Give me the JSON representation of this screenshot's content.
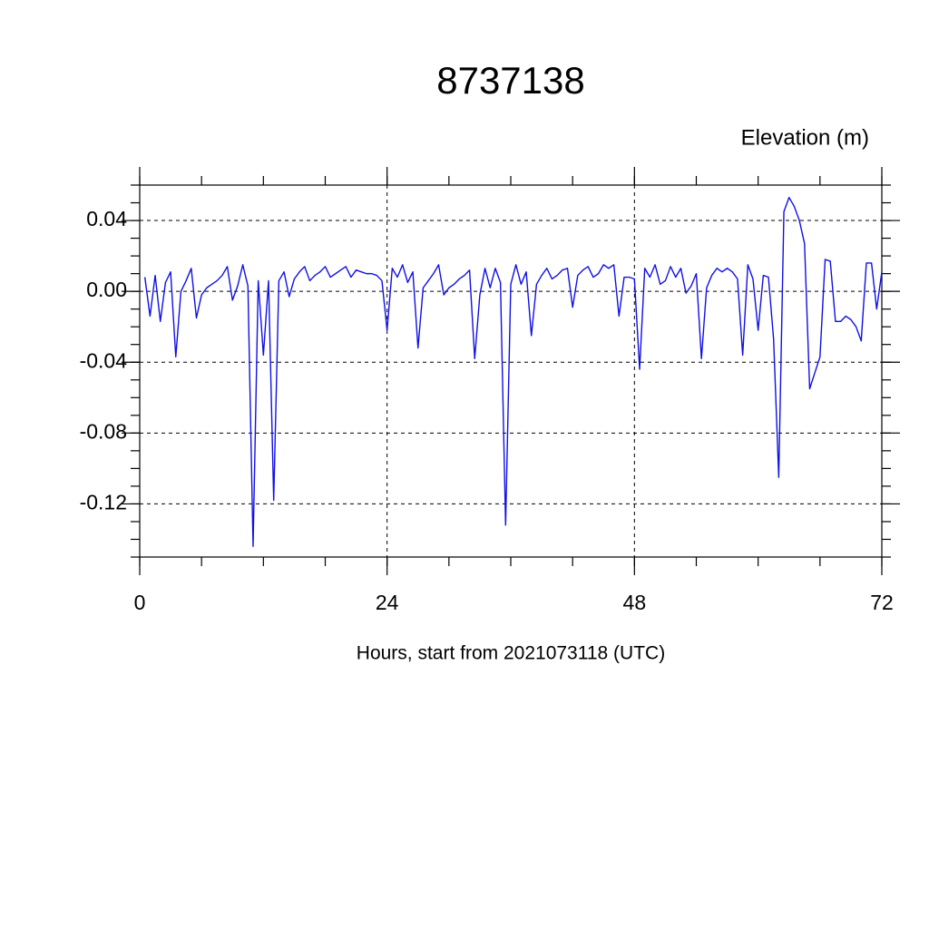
{
  "chart_data": {
    "type": "line",
    "title": "8737138",
    "ylabel": "Elevation (m)",
    "xlabel": "Hours, start from 2021073118 (UTC)",
    "color": "#1010e6",
    "x": [
      0.5,
      1,
      1.5,
      2,
      2.5,
      3,
      3.5,
      4,
      4.5,
      5,
      5.5,
      6,
      6.5,
      7,
      7.5,
      8,
      8.5,
      9,
      9.5,
      10,
      10.5,
      11,
      11.5,
      12,
      12.5,
      13,
      13.5,
      14,
      14.5,
      15,
      15.5,
      16,
      16.5,
      17,
      17.5,
      18,
      18.5,
      19,
      19.5,
      20,
      20.5,
      21,
      21.5,
      22,
      22.5,
      23,
      23.5,
      24,
      24.5,
      25,
      25.5,
      26,
      26.5,
      27,
      27.5,
      28,
      28.5,
      29,
      29.5,
      30,
      30.5,
      31,
      31.5,
      32,
      32.5,
      33,
      33.5,
      34,
      34.5,
      35,
      35.5,
      36,
      36.5,
      37,
      37.5,
      38,
      38.5,
      39,
      39.5,
      40,
      40.5,
      41,
      41.5,
      42,
      42.5,
      43,
      43.5,
      44,
      44.5,
      45,
      45.5,
      46,
      46.5,
      47,
      47.5,
      48,
      48.5,
      49,
      49.5,
      50,
      50.5,
      51,
      51.5,
      52,
      52.5,
      53,
      53.5,
      54,
      54.5,
      55,
      55.5,
      56,
      56.5,
      57,
      57.5,
      58,
      58.5,
      59,
      59.5,
      60,
      60.5,
      61,
      61.5,
      62,
      62.5,
      63,
      63.5,
      64,
      64.5,
      65,
      65.5,
      66,
      66.5,
      67,
      67.5,
      68,
      68.5,
      69,
      69.5,
      70,
      70.5,
      71,
      71.5,
      72
    ],
    "values": [
      0.008,
      -0.014,
      0.009,
      -0.017,
      0.005,
      0.011,
      -0.037,
      0.0,
      0.006,
      0.013,
      -0.015,
      -0.002,
      0.002,
      0.004,
      0.006,
      0.009,
      0.014,
      -0.005,
      0.003,
      0.015,
      0.003,
      -0.144,
      0.006,
      -0.036,
      0.006,
      -0.118,
      0.006,
      0.011,
      -0.003,
      0.007,
      0.011,
      0.014,
      0.006,
      0.009,
      0.011,
      0.014,
      0.008,
      0.01,
      0.012,
      0.014,
      0.008,
      0.012,
      0.011,
      0.01,
      0.01,
      0.009,
      0.006,
      -0.022,
      0.013,
      0.008,
      0.015,
      0.005,
      0.011,
      -0.032,
      0.002,
      0.006,
      0.01,
      0.015,
      -0.002,
      0.002,
      0.004,
      0.007,
      0.009,
      0.012,
      -0.038,
      -0.002,
      0.013,
      0.002,
      0.013,
      0.005,
      -0.132,
      0.004,
      0.015,
      0.004,
      0.011,
      -0.025,
      0.004,
      0.009,
      0.013,
      0.007,
      0.009,
      0.012,
      0.013,
      -0.009,
      0.009,
      0.012,
      0.014,
      0.008,
      0.01,
      0.015,
      0.013,
      0.015,
      -0.014,
      0.008,
      0.008,
      0.007,
      -0.044,
      0.013,
      0.008,
      0.015,
      0.004,
      0.006,
      0.014,
      0.008,
      0.013,
      -0.001,
      0.003,
      0.01,
      -0.038,
      0.002,
      0.009,
      0.013,
      0.011,
      0.013,
      0.011,
      0.007,
      -0.036,
      0.015,
      0.007,
      -0.022,
      0.009,
      0.008,
      -0.027,
      -0.105,
      0.045,
      0.053,
      0.048,
      0.04,
      0.027,
      -0.055,
      -0.046,
      -0.037,
      0.018,
      0.017,
      -0.017,
      -0.017,
      -0.014,
      -0.016,
      -0.02,
      -0.028,
      0.016,
      0.016,
      -0.01,
      0.011
    ],
    "xlim": [
      0,
      72
    ],
    "xticks": [
      0,
      24,
      48,
      72
    ],
    "ylim": [
      -0.15,
      0.06
    ],
    "yticks": [
      0.04,
      {
        "value": 0,
        "label": "0.00"
      },
      -0.04,
      -0.08,
      -0.12
    ],
    "grid": true
  }
}
